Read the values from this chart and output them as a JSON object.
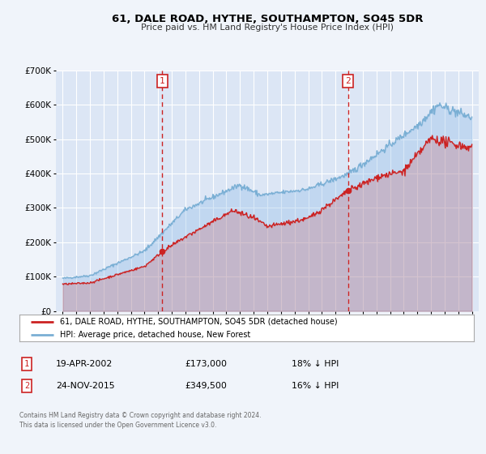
{
  "title": "61, DALE ROAD, HYTHE, SOUTHAMPTON, SO45 5DR",
  "subtitle": "Price paid vs. HM Land Registry's House Price Index (HPI)",
  "bg_color": "#f0f4fa",
  "plot_bg_color": "#dce6f5",
  "grid_color": "#ffffff",
  "red_line_label": "61, DALE ROAD, HYTHE, SOUTHAMPTON, SO45 5DR (detached house)",
  "blue_line_label": "HPI: Average price, detached house, New Forest",
  "sale1_date": "19-APR-2002",
  "sale1_price": 173000,
  "sale1_pct": "18% ↓ HPI",
  "sale2_date": "24-NOV-2015",
  "sale2_price": 349500,
  "sale2_pct": "16% ↓ HPI",
  "vline1_x": 2002.3,
  "vline2_x": 2015.92,
  "footer": "Contains HM Land Registry data © Crown copyright and database right 2024.\nThis data is licensed under the Open Government Licence v3.0.",
  "ylim": [
    0,
    700000
  ],
  "xlim": [
    1994.5,
    2025.5
  ]
}
